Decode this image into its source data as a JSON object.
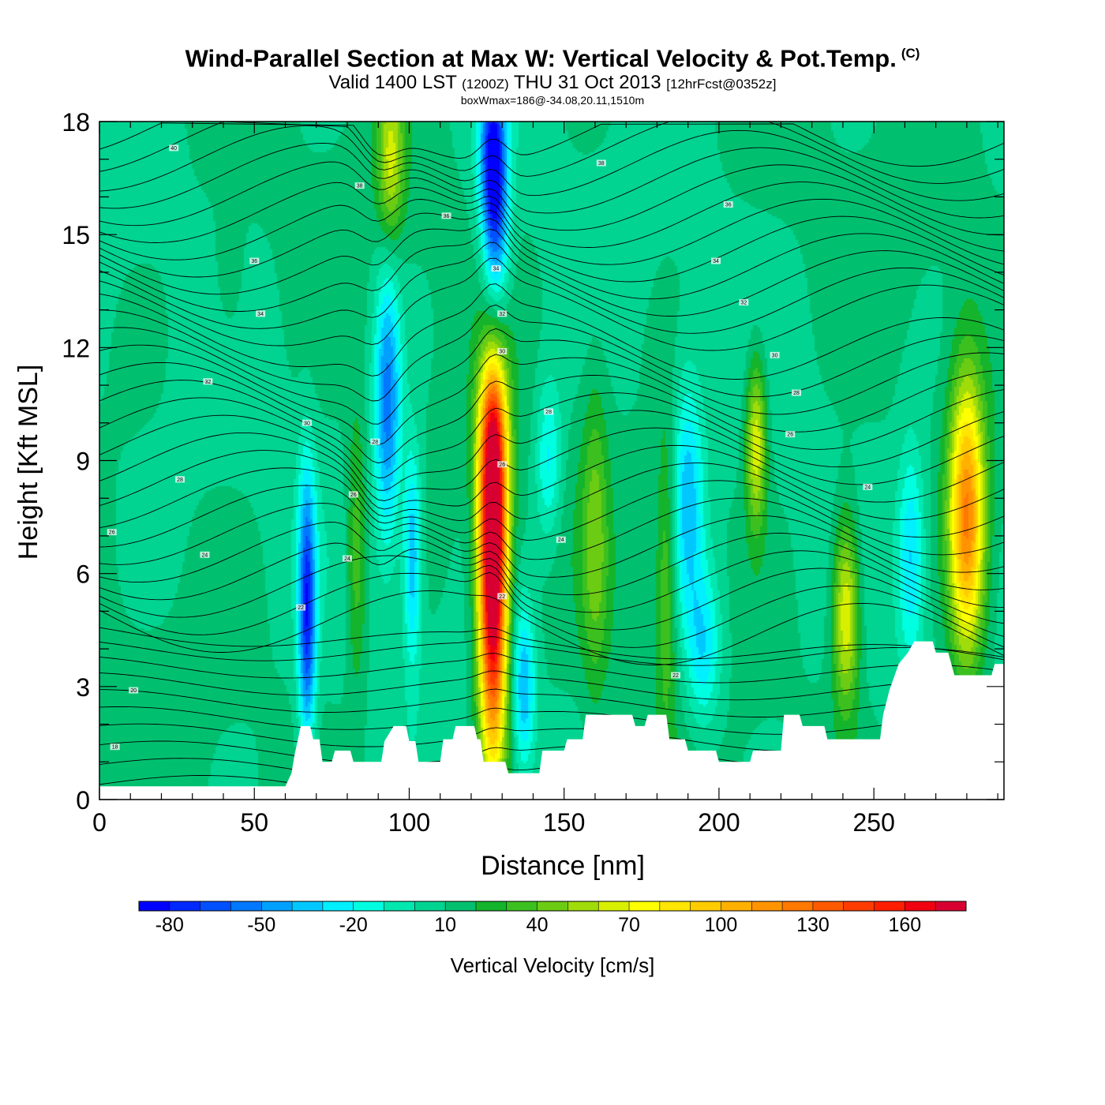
{
  "title": {
    "main": "Wind-Parallel Section at Max W: Vertical Velocity & Pot.Temp.",
    "copyright": "(C)",
    "valid_prefix": "Valid 1400 LST",
    "valid_utc": "(1200Z)",
    "valid_date": "THU 31 Oct 2013",
    "forecast": "[12hrFcst@0352z]",
    "box_info": "boxWmax=186@-34.08,20.11,1510m"
  },
  "chart_data": {
    "type": "heatmap",
    "xlabel": "Distance [nm]",
    "ylabel": "Height [Kft MSL]",
    "xlim": [
      0,
      292
    ],
    "ylim": [
      0,
      18
    ],
    "xticks": [
      "0",
      "50",
      "100",
      "150",
      "200",
      "250"
    ],
    "yticks": [
      "0",
      "3",
      "6",
      "9",
      "12",
      "15",
      "18"
    ],
    "background_value": 10,
    "colorbar": {
      "title": "Vertical Velocity [cm/s]",
      "bounds": [
        -90,
        -80,
        -70,
        -60,
        -50,
        -40,
        -30,
        -20,
        -10,
        0,
        10,
        20,
        30,
        40,
        50,
        60,
        70,
        80,
        90,
        100,
        110,
        120,
        130,
        140,
        150,
        160,
        170,
        180
      ],
      "tick_labels": [
        "-80",
        "-50",
        "-20",
        "10",
        "40",
        "70",
        "100",
        "130",
        "160"
      ],
      "colors": [
        "#0000ff",
        "#0028ff",
        "#0050ff",
        "#0078ff",
        "#00a0ff",
        "#00c8ff",
        "#00f0ff",
        "#00ffe0",
        "#00e8b0",
        "#00d490",
        "#00c070",
        "#14b42c",
        "#3cc020",
        "#6ccc14",
        "#a0dc0a",
        "#d8f000",
        "#ffff00",
        "#ffe600",
        "#ffcc00",
        "#ffb000",
        "#ff9400",
        "#ff7800",
        "#ff5a00",
        "#ff3c00",
        "#ff1e00",
        "#f00010",
        "#d80030"
      ]
    },
    "features": [
      {
        "name": "updraft-main",
        "x": 127,
        "y": 5.5,
        "sx": 3.2,
        "sy": 3.2,
        "value": 186
      },
      {
        "name": "updraft-main-upper",
        "x": 127,
        "y": 8.5,
        "sx": 3.5,
        "sy": 2.0,
        "value": 80
      },
      {
        "name": "updraft-main-top",
        "x": 127,
        "y": 10.0,
        "sx": 3.0,
        "sy": 1.2,
        "value": 50
      },
      {
        "name": "updraft-right-edge",
        "x": 280,
        "y": 7.5,
        "sx": 4.0,
        "sy": 2.6,
        "value": 120
      },
      {
        "name": "updraft-240",
        "x": 241,
        "y": 5.0,
        "sx": 3.0,
        "sy": 1.8,
        "value": 75
      },
      {
        "name": "updraft-212",
        "x": 212,
        "y": 9.5,
        "sx": 2.3,
        "sy": 1.6,
        "value": 70
      },
      {
        "name": "updraft-upper-95",
        "x": 94,
        "y": 17.0,
        "sx": 3.0,
        "sy": 1.6,
        "value": 60
      },
      {
        "name": "updraft-83",
        "x": 83,
        "y": 6.5,
        "sx": 2.3,
        "sy": 2.5,
        "value": 40
      },
      {
        "name": "updraft-160",
        "x": 160,
        "y": 7.0,
        "sx": 3.0,
        "sy": 3.0,
        "value": 40
      },
      {
        "name": "updraft-187",
        "x": 183,
        "y": 6.0,
        "sx": 2.3,
        "sy": 3.0,
        "value": 40
      },
      {
        "name": "updraft-40",
        "x": 42,
        "y": 14.0,
        "sx": 3.0,
        "sy": 1.2,
        "value": 25
      },
      {
        "name": "downdraft-67",
        "x": 67,
        "y": 5.0,
        "sx": 2.0,
        "sy": 2.5,
        "value": -75
      },
      {
        "name": "downdraft-93",
        "x": 93,
        "y": 10.5,
        "sx": 3.0,
        "sy": 2.5,
        "value": -55
      },
      {
        "name": "downdraft-100",
        "x": 101,
        "y": 6.5,
        "sx": 2.0,
        "sy": 2.0,
        "value": -40
      },
      {
        "name": "downdraft-125-top",
        "x": 127,
        "y": 17.2,
        "sx": 3.0,
        "sy": 1.5,
        "value": -75
      },
      {
        "name": "downdraft-128-upper",
        "x": 128,
        "y": 15.0,
        "sx": 3.0,
        "sy": 1.6,
        "value": -45
      },
      {
        "name": "downdraft-137",
        "x": 137,
        "y": 3.0,
        "sx": 2.5,
        "sy": 1.5,
        "value": -40
      },
      {
        "name": "downdraft-190",
        "x": 190,
        "y": 8.0,
        "sx": 3.5,
        "sy": 2.2,
        "value": -35
      },
      {
        "name": "downdraft-195-low",
        "x": 195,
        "y": 4.0,
        "sx": 4.0,
        "sy": 1.5,
        "value": -30
      },
      {
        "name": "downdraft-145",
        "x": 145,
        "y": 9.0,
        "sx": 3.0,
        "sy": 1.5,
        "value": -25
      },
      {
        "name": "downdraft-262",
        "x": 262,
        "y": 6.5,
        "sx": 3.0,
        "sy": 2.0,
        "value": -30
      }
    ],
    "terrain": [
      [
        0,
        0.35
      ],
      [
        60,
        0.35
      ],
      [
        62,
        0.7
      ],
      [
        63,
        1.2
      ],
      [
        65,
        1.95
      ],
      [
        68,
        1.95
      ],
      [
        69,
        1.6
      ],
      [
        71,
        1.6
      ],
      [
        72,
        1.0
      ],
      [
        75,
        1.0
      ],
      [
        76,
        1.3
      ],
      [
        81,
        1.3
      ],
      [
        82,
        1.0
      ],
      [
        91,
        1.0
      ],
      [
        92,
        1.55
      ],
      [
        95,
        1.95
      ],
      [
        99,
        1.95
      ],
      [
        100,
        1.55
      ],
      [
        102,
        1.55
      ],
      [
        103,
        1.0
      ],
      [
        110,
        1.0
      ],
      [
        111,
        1.6
      ],
      [
        114,
        1.6
      ],
      [
        115,
        1.95
      ],
      [
        121,
        1.95
      ],
      [
        122,
        1.6
      ],
      [
        123,
        1.6
      ],
      [
        124,
        1.0
      ],
      [
        131,
        1.0
      ],
      [
        132,
        0.7
      ],
      [
        142,
        0.7
      ],
      [
        143,
        1.3
      ],
      [
        150,
        1.3
      ],
      [
        151,
        1.6
      ],
      [
        156,
        1.6
      ],
      [
        157,
        2.25
      ],
      [
        172,
        2.25
      ],
      [
        173,
        1.95
      ],
      [
        176,
        1.95
      ],
      [
        177,
        2.25
      ],
      [
        183,
        2.25
      ],
      [
        184,
        1.6
      ],
      [
        189,
        1.6
      ],
      [
        190,
        1.3
      ],
      [
        199,
        1.3
      ],
      [
        200,
        1.0
      ],
      [
        210,
        1.0
      ],
      [
        211,
        1.3
      ],
      [
        220,
        1.3
      ],
      [
        221,
        2.25
      ],
      [
        226,
        2.25
      ],
      [
        227,
        1.95
      ],
      [
        234,
        1.95
      ],
      [
        235,
        1.6
      ],
      [
        252,
        1.6
      ],
      [
        253,
        2.25
      ],
      [
        255,
        2.9
      ],
      [
        258,
        3.6
      ],
      [
        261,
        3.9
      ],
      [
        263,
        4.2
      ],
      [
        269,
        4.2
      ],
      [
        270,
        3.9
      ],
      [
        274,
        3.9
      ],
      [
        276,
        3.3
      ],
      [
        288,
        3.3
      ],
      [
        289,
        3.6
      ],
      [
        292,
        3.6
      ]
    ],
    "isentrope_labels": [
      {
        "text": "40",
        "x": 24,
        "y": 17.3
      },
      {
        "text": "38",
        "x": 84,
        "y": 16.3
      },
      {
        "text": "36",
        "x": 112,
        "y": 15.5
      },
      {
        "text": "38",
        "x": 162,
        "y": 16.9
      },
      {
        "text": "36",
        "x": 203,
        "y": 15.8
      },
      {
        "text": "36",
        "x": 50,
        "y": 14.3
      },
      {
        "text": "34",
        "x": 128,
        "y": 14.1
      },
      {
        "text": "34",
        "x": 199,
        "y": 14.3
      },
      {
        "text": "34",
        "x": 52,
        "y": 12.9
      },
      {
        "text": "32",
        "x": 130,
        "y": 12.9
      },
      {
        "text": "32",
        "x": 208,
        "y": 13.2
      },
      {
        "text": "30",
        "x": 130,
        "y": 11.9
      },
      {
        "text": "30",
        "x": 218,
        "y": 11.8
      },
      {
        "text": "32",
        "x": 35,
        "y": 11.1
      },
      {
        "text": "28",
        "x": 145,
        "y": 10.3
      },
      {
        "text": "28",
        "x": 225,
        "y": 10.8
      },
      {
        "text": "30",
        "x": 67,
        "y": 10.0
      },
      {
        "text": "26",
        "x": 223,
        "y": 9.7
      },
      {
        "text": "28",
        "x": 89,
        "y": 9.5
      },
      {
        "text": "26",
        "x": 130,
        "y": 8.9
      },
      {
        "text": "28",
        "x": 26,
        "y": 8.5
      },
      {
        "text": "24",
        "x": 248,
        "y": 8.3
      },
      {
        "text": "26",
        "x": 82,
        "y": 8.1
      },
      {
        "text": "24",
        "x": 149,
        "y": 6.9
      },
      {
        "text": "26",
        "x": 4,
        "y": 7.1
      },
      {
        "text": "24",
        "x": 34,
        "y": 6.5
      },
      {
        "text": "24",
        "x": 80,
        "y": 6.4
      },
      {
        "text": "22",
        "x": 130,
        "y": 5.4
      },
      {
        "text": "22",
        "x": 65,
        "y": 5.1
      },
      {
        "text": "22",
        "x": 186,
        "y": 3.3
      },
      {
        "text": "20",
        "x": 11,
        "y": 2.9
      },
      {
        "text": "18",
        "x": 5,
        "y": 1.4
      }
    ]
  }
}
